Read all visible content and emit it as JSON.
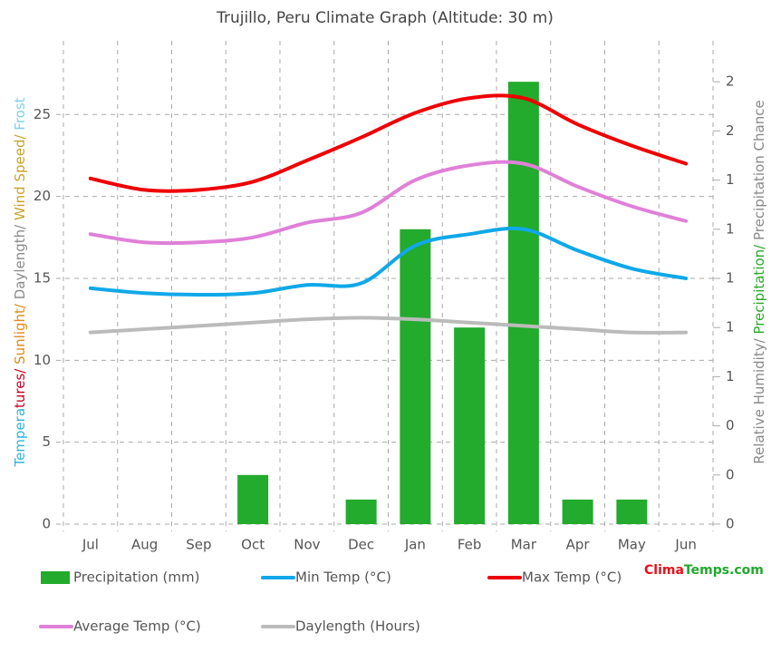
{
  "chart_data": {
    "type": "climate",
    "title": "Trujillo, Peru Climate Graph (Altitude: 30 m)",
    "ylabel_parts": [
      {
        "text": "Tempera",
        "color": "#33b5d6"
      },
      {
        "text": "tures/",
        "color": "#c8001e"
      },
      {
        "text": " Sunlight/",
        "color": "#e08a1a"
      },
      {
        "text": " Daylength/",
        "color": "#8a8a8a"
      },
      {
        "text": " Wind Speed/",
        "color": "#c9a227"
      },
      {
        "text": " Frost",
        "color": "#7fd0ea"
      }
    ],
    "y2label_parts": [
      {
        "text": "Relative Humidity/",
        "color": "#8a8a8a"
      },
      {
        "text": " Precipitation/",
        "color": "#2ba82b"
      },
      {
        "text": " Precipitation Chance",
        "color": "#8a8a8a"
      }
    ],
    "categories": [
      "Jul",
      "Aug",
      "Sep",
      "Oct",
      "Nov",
      "Dec",
      "Jan",
      "Feb",
      "Mar",
      "Apr",
      "May",
      "Jun"
    ],
    "ylim": [
      0,
      29.5
    ],
    "yticks": [
      0,
      5,
      10,
      15,
      20,
      25
    ],
    "y2lim": [
      0,
      1.9667
    ],
    "y2ticks": [
      {
        "value": 0,
        "label": "0"
      },
      {
        "value": 0.2,
        "label": "0"
      },
      {
        "value": 0.4,
        "label": "0"
      },
      {
        "value": 0.6,
        "label": "1"
      },
      {
        "value": 0.8,
        "label": "1"
      },
      {
        "value": 1.0,
        "label": "1"
      },
      {
        "value": 1.2,
        "label": "1"
      },
      {
        "value": 1.4,
        "label": "1"
      },
      {
        "value": 1.6,
        "label": "2"
      },
      {
        "value": 1.8,
        "label": "2"
      }
    ],
    "grid": true,
    "series": [
      {
        "name": "Precipitation (mm)",
        "kind": "bar",
        "axis": "y2",
        "color": "#22ab2d",
        "values": [
          0,
          0,
          0,
          0.2,
          0,
          0.1,
          1.2,
          0.8,
          1.8,
          0.1,
          0.1,
          0
        ]
      },
      {
        "name": "Min Temp (°C)",
        "kind": "line",
        "color": "#10a8e8",
        "values": [
          14.4,
          14.1,
          14.0,
          14.1,
          14.6,
          14.7,
          17.0,
          17.7,
          18.0,
          16.7,
          15.6,
          15.0
        ]
      },
      {
        "name": "Max Temp (°C)",
        "kind": "line",
        "color": "#ee0000",
        "values": [
          21.1,
          20.4,
          20.4,
          20.9,
          22.2,
          23.6,
          25.1,
          26.0,
          26.0,
          24.4,
          23.1,
          22.0
        ]
      },
      {
        "name": "Average Temp (°C)",
        "kind": "line",
        "color": "#e080d8",
        "values": [
          17.7,
          17.2,
          17.2,
          17.5,
          18.4,
          19.0,
          21.0,
          21.9,
          22.0,
          20.6,
          19.4,
          18.5
        ]
      },
      {
        "name": "Daylength (Hours)",
        "kind": "line",
        "color": "#bbbbbb",
        "values": [
          11.7,
          11.9,
          12.1,
          12.3,
          12.5,
          12.6,
          12.5,
          12.3,
          12.1,
          11.9,
          11.7,
          11.7
        ]
      }
    ],
    "watermark_parts": [
      {
        "text": "Clima",
        "color": "#e8101a"
      },
      {
        "text": "Temps.com",
        "color": "#22a82d"
      }
    ]
  }
}
